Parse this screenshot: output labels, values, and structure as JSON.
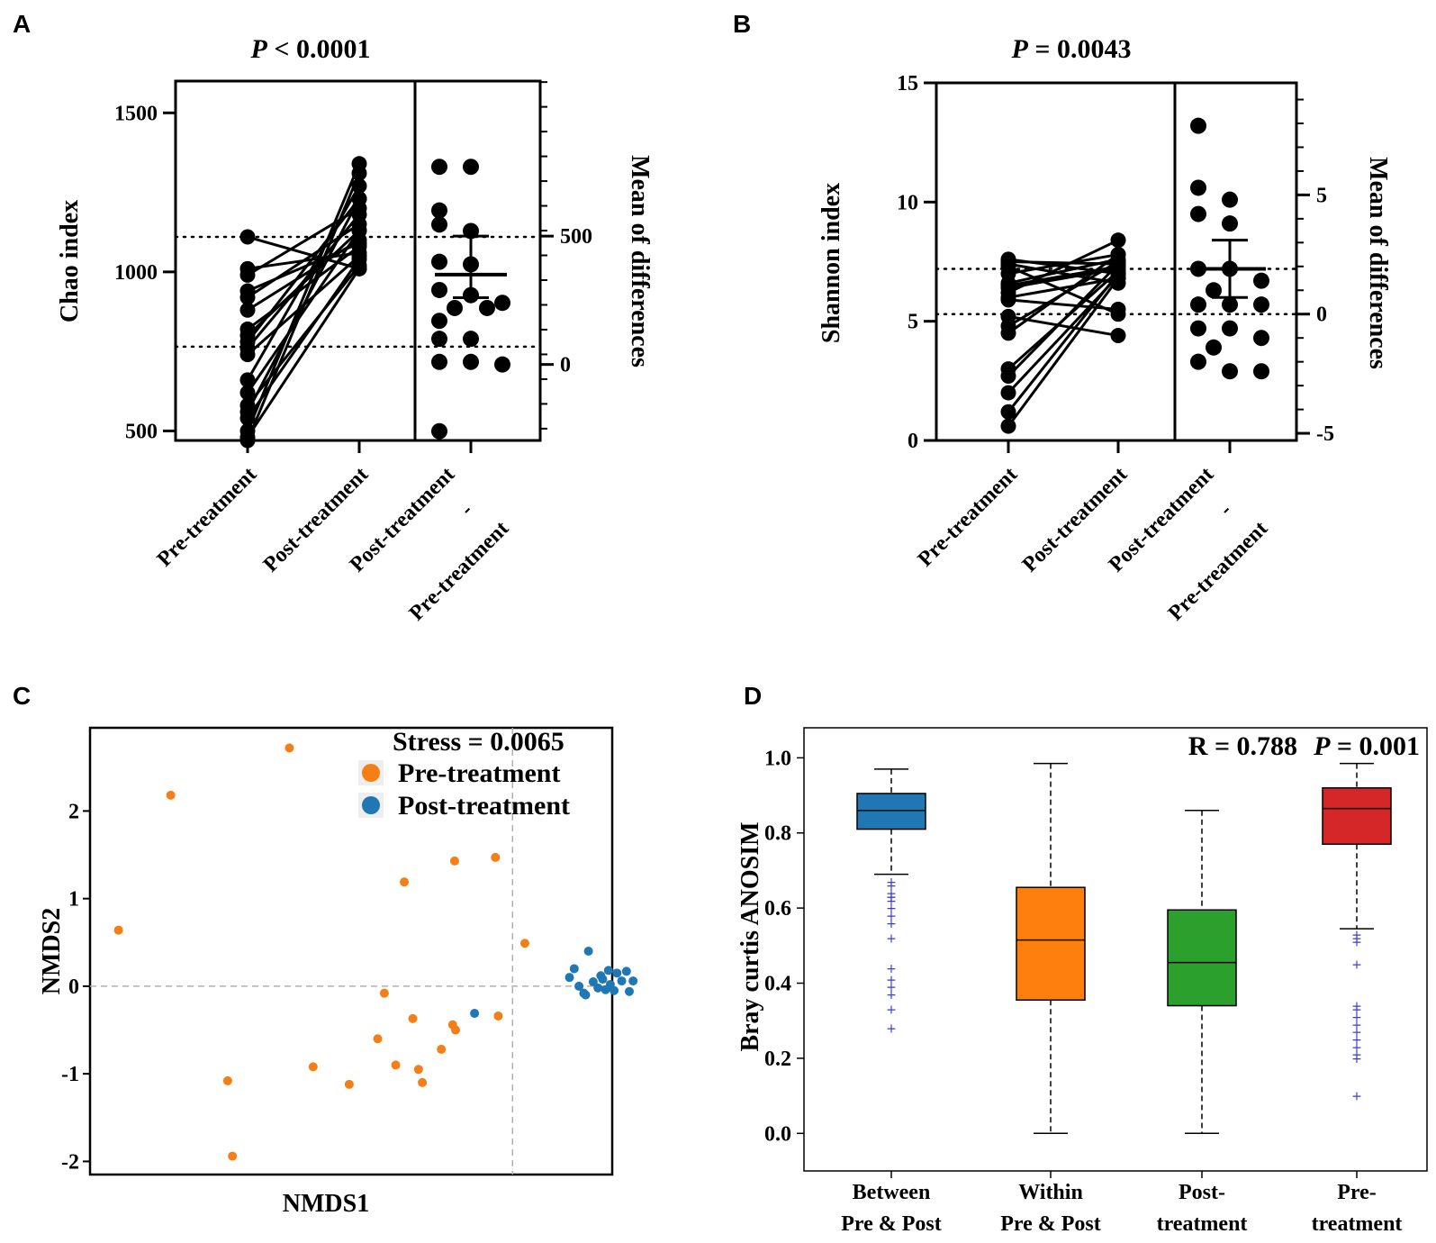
{
  "chart_data": [
    {
      "panel": "A",
      "type": "scatter",
      "title_p": "P",
      "title_rest": " < 0.0001",
      "ylabel": "Chao index",
      "ylabel_right": "Mean of differences",
      "ylim": [
        470,
        1600
      ],
      "yticks": [
        500,
        1000,
        1500
      ],
      "right_ylim": [
        -296,
        1104
      ],
      "right_yticks": [
        0,
        500
      ],
      "categories": [
        "Pre-treatment",
        "Post-treatment"
      ],
      "diff_label_1": "Post-treatment",
      "diff_label_dash": "-",
      "diff_label_2": "Pre-treatment",
      "pairs": [
        [
          1110,
          1010
        ],
        [
          1010,
          1060
        ],
        [
          940,
          1090
        ],
        [
          920,
          1150
        ],
        [
          880,
          1100
        ],
        [
          800,
          1130
        ],
        [
          780,
          1230
        ],
        [
          740,
          1050
        ],
        [
          660,
          1270
        ],
        [
          620,
          1130
        ],
        [
          580,
          1020
        ],
        [
          540,
          1040
        ],
        [
          500,
          1340
        ],
        [
          480,
          1010
        ],
        [
          470,
          1310
        ],
        [
          560,
          1230
        ],
        [
          760,
          1180
        ],
        [
          820,
          1080
        ],
        [
          990,
          1200
        ]
      ],
      "differences": [
        770,
        770,
        600,
        545,
        520,
        400,
        390,
        290,
        270,
        240,
        220,
        220,
        170,
        100,
        100,
        10,
        10,
        0,
        -260
      ],
      "diff_mean": 350,
      "diff_ci": [
        260,
        500
      ],
      "ref_lines_left": [
        1110,
        765
      ]
    },
    {
      "panel": "B",
      "type": "scatter",
      "title_p": "P",
      "title_rest": "  = 0.0043",
      "ylabel": "Shannon index",
      "ylabel_right": "Mean of differences",
      "ylim": [
        0,
        15
      ],
      "yticks": [
        0,
        5,
        10,
        15
      ],
      "right_ylim": [
        -5.3,
        9.7
      ],
      "right_yticks": [
        -5,
        0,
        5
      ],
      "categories": [
        "Pre-treatment",
        "Post-treatment"
      ],
      "diff_label_1": "Post-treatment",
      "diff_label_dash": "-",
      "diff_label_2": "Pre-treatment",
      "pairs": [
        [
          7.6,
          7.0
        ],
        [
          7.5,
          7.4
        ],
        [
          7.4,
          6.6
        ],
        [
          7.3,
          5.3
        ],
        [
          6.6,
          7.6
        ],
        [
          6.5,
          7.3
        ],
        [
          6.4,
          7.2
        ],
        [
          6.2,
          8.4
        ],
        [
          5.9,
          5.5
        ],
        [
          4.8,
          7.5
        ],
        [
          4.5,
          7.8
        ],
        [
          3.0,
          7.1
        ],
        [
          2.7,
          7.4
        ],
        [
          2.0,
          6.9
        ],
        [
          1.2,
          7.0
        ],
        [
          0.6,
          6.8
        ],
        [
          5.2,
          4.4
        ],
        [
          6.0,
          6.8
        ],
        [
          7.0,
          7.8
        ]
      ],
      "differences": [
        7.9,
        5.3,
        4.8,
        4.2,
        3.8,
        1.9,
        1.9,
        1.4,
        1.0,
        0.4,
        0.4,
        0.4,
        -0.6,
        -0.6,
        -1.0,
        -2.0,
        -2.4,
        -2.4,
        -1.4
      ],
      "diff_mean": 1.9,
      "diff_ci": [
        0.7,
        3.1
      ],
      "ref_lines_left": [
        7.2,
        5.3
      ]
    },
    {
      "panel": "C",
      "type": "scatter",
      "xlabel": "NMDS1",
      "ylabel": "NMDS2",
      "xlim": [
        -3.1,
        2.4
      ],
      "ylim": [
        -2.15,
        2.95
      ],
      "yticks": [
        -2,
        -1,
        0,
        1,
        2
      ],
      "ytick_labels": [
        "-2",
        "-1",
        "0",
        "1",
        "2"
      ],
      "ref_x": 1.35,
      "ref_y": 0,
      "stress_label": "Stress = 0.0065",
      "legend": [
        "Pre-treatment",
        "Post-treatment"
      ],
      "colors": [
        "#f57f17",
        "#1f77b4"
      ],
      "series": [
        {
          "name": "Pre-treatment",
          "points": [
            [
              -2.8,
              0.64
            ],
            [
              -2.25,
              2.18
            ],
            [
              -1.0,
              2.72
            ],
            [
              -1.65,
              -1.08
            ],
            [
              -1.6,
              -1.94
            ],
            [
              -0.75,
              -0.92
            ],
            [
              -0.37,
              -1.12
            ],
            [
              -0.07,
              -0.6
            ],
            [
              0.0,
              -0.08
            ],
            [
              0.12,
              -0.9
            ],
            [
              0.21,
              1.19
            ],
            [
              0.3,
              -0.37
            ],
            [
              0.36,
              -0.95
            ],
            [
              0.4,
              -1.1
            ],
            [
              0.6,
              -0.72
            ],
            [
              0.72,
              -0.44
            ],
            [
              0.75,
              -0.5
            ],
            [
              0.74,
              1.43
            ],
            [
              1.17,
              1.47
            ],
            [
              1.2,
              -0.34
            ],
            [
              1.48,
              0.49
            ]
          ]
        },
        {
          "name": "Post-treatment",
          "points": [
            [
              0.95,
              -0.31
            ],
            [
              1.95,
              0.1
            ],
            [
              2.0,
              0.2
            ],
            [
              2.05,
              0.0
            ],
            [
              2.1,
              -0.08
            ],
            [
              2.15,
              0.4
            ],
            [
              2.2,
              0.05
            ],
            [
              2.25,
              -0.02
            ],
            [
              2.3,
              0.08
            ],
            [
              2.33,
              -0.04
            ],
            [
              2.36,
              0.18
            ],
            [
              2.38,
              0.02
            ],
            [
              2.42,
              -0.05
            ],
            [
              2.45,
              0.15
            ],
            [
              2.5,
              0.06
            ],
            [
              2.55,
              0.17
            ],
            [
              2.58,
              -0.06
            ],
            [
              2.62,
              0.06
            ],
            [
              2.12,
              -0.1
            ],
            [
              2.28,
              0.12
            ]
          ]
        }
      ]
    },
    {
      "panel": "D",
      "type": "box",
      "ylabel": "Bray curtis ANOSIM",
      "ylim": [
        -0.1,
        1.08
      ],
      "yticks": [
        0,
        0.2,
        0.4,
        0.6,
        0.8,
        1.0
      ],
      "ytick_labels": [
        "0.0",
        "0.2",
        "0.4",
        "0.6",
        "0.8",
        "1.0"
      ],
      "r_label": "R = 0.788",
      "p_italic": "P",
      "p_rest": " = 0.001",
      "categories": [
        {
          "line1": "Between",
          "line2": "Pre & Post"
        },
        {
          "line1": "Within",
          "line2": "Pre & Post"
        },
        {
          "line1": "Post-",
          "line2": "treatment"
        },
        {
          "line1": "Pre-",
          "line2": "treatment"
        }
      ],
      "boxes": [
        {
          "whislo": 0.69,
          "q1": 0.81,
          "med": 0.86,
          "q3": 0.905,
          "whishi": 0.97,
          "color": "#1f77b4",
          "fliers": [
            0.67,
            0.66,
            0.64,
            0.63,
            0.63,
            0.62,
            0.6,
            0.58,
            0.56,
            0.52,
            0.44,
            0.41,
            0.39,
            0.37,
            0.33,
            0.28
          ]
        },
        {
          "whislo": 0.0,
          "q1": 0.355,
          "med": 0.515,
          "q3": 0.655,
          "whishi": 0.985,
          "color": "#ff7f0e",
          "fliers": []
        },
        {
          "whislo": 0.0,
          "q1": 0.34,
          "med": 0.455,
          "q3": 0.595,
          "whishi": 0.86,
          "color": "#2ca02c",
          "fliers": []
        },
        {
          "whislo": 0.545,
          "q1": 0.77,
          "med": 0.865,
          "q3": 0.92,
          "whishi": 0.985,
          "color": "#d62728",
          "fliers": [
            0.53,
            0.52,
            0.51,
            0.45,
            0.34,
            0.33,
            0.31,
            0.29,
            0.27,
            0.25,
            0.23,
            0.21,
            0.2,
            0.1
          ]
        }
      ]
    }
  ]
}
